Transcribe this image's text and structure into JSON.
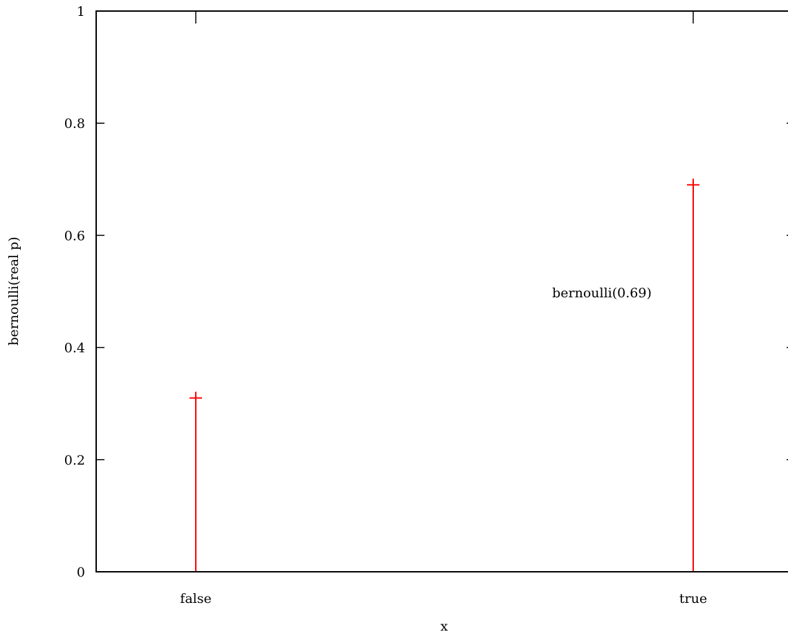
{
  "chart_data": {
    "type": "bar",
    "style": "impulse",
    "categories": [
      "false",
      "true"
    ],
    "values": [
      0.31,
      0.69
    ],
    "xlabel": "x",
    "ylabel": "bernoulli(real p)",
    "ylim": [
      0,
      1
    ],
    "yticks": [
      "0",
      "0.2",
      "0.4",
      "0.6",
      "0.8",
      "1"
    ],
    "yticks_values": [
      0,
      0.2,
      0.4,
      0.6,
      0.8,
      1
    ],
    "annotation": "bernoulli(0.69)",
    "grid": false,
    "series_color": "#ff0000"
  }
}
